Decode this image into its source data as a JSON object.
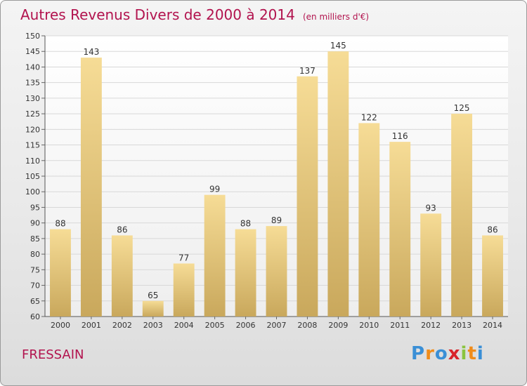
{
  "chart_data": {
    "type": "bar",
    "title": "Autres Revenus Divers de 2000 à 2014",
    "unit_label": "(en milliers d'€)",
    "categories": [
      "2000",
      "2001",
      "2002",
      "2003",
      "2004",
      "2005",
      "2006",
      "2007",
      "2008",
      "2009",
      "2010",
      "2011",
      "2012",
      "2013",
      "2014"
    ],
    "values": [
      88,
      143,
      86,
      65,
      77,
      99,
      88,
      89,
      137,
      145,
      122,
      116,
      93,
      125,
      86
    ],
    "ylim": [
      60,
      150
    ],
    "yticks": [
      60,
      65,
      70,
      75,
      80,
      85,
      90,
      95,
      100,
      105,
      110,
      115,
      120,
      125,
      130,
      135,
      140,
      145,
      150
    ],
    "grid": true,
    "bar_color": "#e6c77a"
  },
  "commune": "FRESSAIN",
  "logo": {
    "text": "Proxiti",
    "letters": [
      {
        "ch": "P",
        "color": "#3a8fd6"
      },
      {
        "ch": "r",
        "color": "#f08c1a"
      },
      {
        "ch": "o",
        "color": "#3a8fd6"
      },
      {
        "ch": "x",
        "color": "#d8232a"
      },
      {
        "ch": "i",
        "color": "#8ac43f"
      },
      {
        "ch": "t",
        "color": "#f08c1a"
      },
      {
        "ch": "i",
        "color": "#3a8fd6"
      }
    ]
  }
}
